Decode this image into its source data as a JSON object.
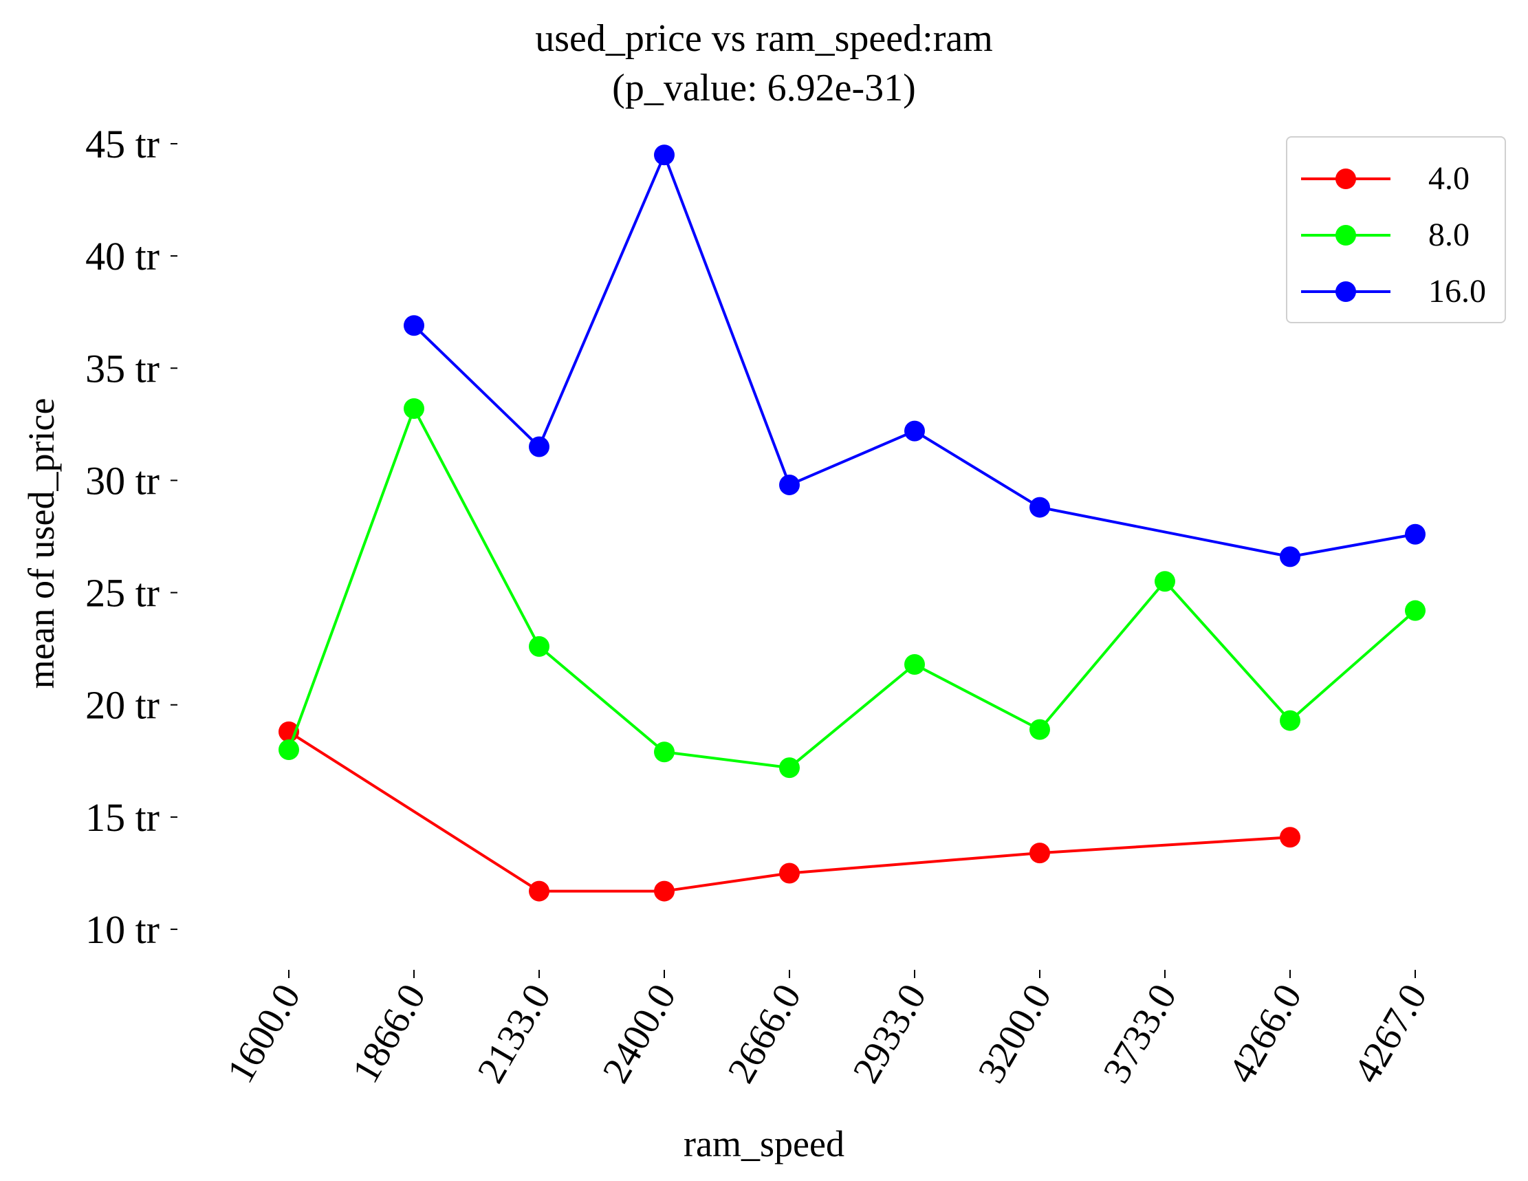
{
  "chart_data": {
    "type": "line",
    "title": "used_price vs ram_speed:ram",
    "subtitle": "(p_value: 6.92e-31)",
    "xlabel": "ram_speed",
    "ylabel": "mean of used_price",
    "categories": [
      "1600.0",
      "1866.0",
      "2133.0",
      "2400.0",
      "2666.0",
      "2933.0",
      "3200.0",
      "3733.0",
      "4266.0",
      "4267.0"
    ],
    "yticks": [
      10,
      15,
      20,
      25,
      30,
      35,
      40,
      45
    ],
    "ytick_labels": [
      "10 tr",
      "15 tr",
      "20 tr",
      "25 tr",
      "30 tr",
      "35 tr",
      "40 tr",
      "45 tr"
    ],
    "ylim": [
      8.5,
      46.5
    ],
    "grid": false,
    "legend_position": "top-right",
    "series": [
      {
        "name": "4.0",
        "color": "#ff0000",
        "values": [
          18.8,
          null,
          11.7,
          11.7,
          12.5,
          null,
          13.4,
          null,
          14.1,
          null
        ]
      },
      {
        "name": "8.0",
        "color": "#00ff00",
        "values": [
          18.0,
          33.2,
          22.6,
          17.9,
          17.2,
          21.8,
          18.9,
          25.5,
          19.3,
          24.2
        ]
      },
      {
        "name": "16.0",
        "color": "#0000ff",
        "values": [
          null,
          36.9,
          31.5,
          44.5,
          29.8,
          32.2,
          28.8,
          null,
          26.6,
          27.6
        ]
      }
    ]
  }
}
